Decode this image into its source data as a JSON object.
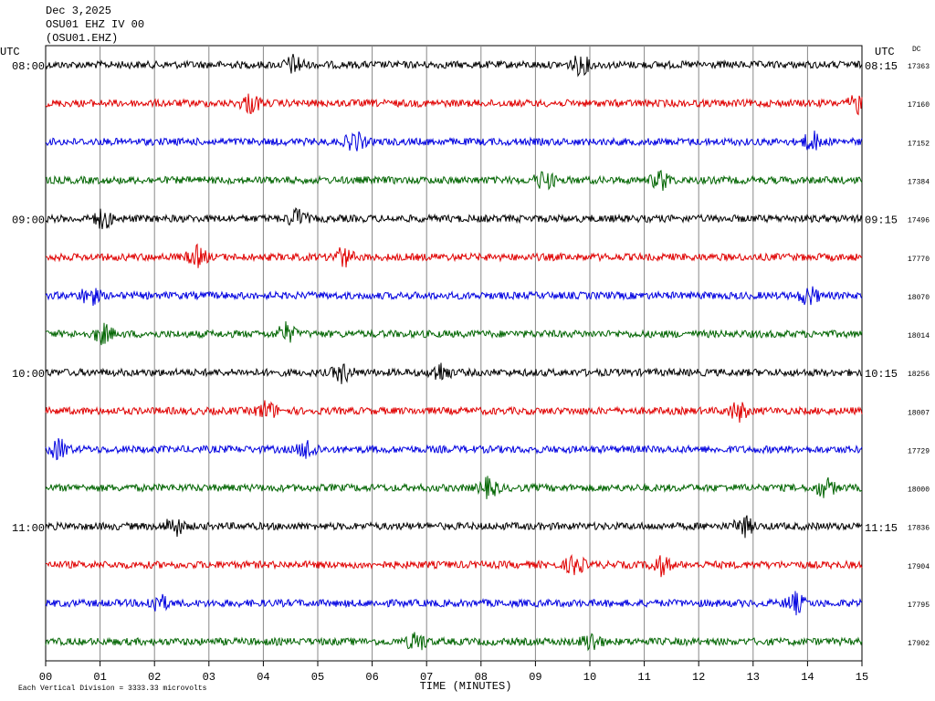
{
  "header": {
    "date": "Dec 3,2025",
    "station": "OSU01 EHZ IV 00",
    "channel": "(OSU01.EHZ)"
  },
  "left_axis": {
    "label": "UTC"
  },
  "right_axis": {
    "label": "UTC",
    "dc_label": "DC"
  },
  "rows": [
    {
      "left_time": "08:00",
      "right_time": "08:15",
      "dc": 17363,
      "color": "#000000"
    },
    {
      "dc": 17160,
      "color": "#e00000"
    },
    {
      "dc": 17152,
      "color": "#0000e0"
    },
    {
      "dc": 17384,
      "color": "#006400"
    },
    {
      "left_time": "09:00",
      "right_time": "09:15",
      "dc": 17496,
      "color": "#000000"
    },
    {
      "dc": 17770,
      "color": "#e00000"
    },
    {
      "dc": 18070,
      "color": "#0000e0"
    },
    {
      "dc": 18014,
      "color": "#006400"
    },
    {
      "left_time": "10:00",
      "right_time": "10:15",
      "dc": 18256,
      "color": "#000000"
    },
    {
      "dc": 18007,
      "color": "#e00000"
    },
    {
      "dc": 17729,
      "color": "#0000e0"
    },
    {
      "dc": 18000,
      "color": "#006400"
    },
    {
      "left_time": "11:00",
      "right_time": "11:15",
      "dc": 17836,
      "color": "#000000"
    },
    {
      "dc": 17904,
      "color": "#e00000"
    },
    {
      "dc": 17795,
      "color": "#0000e0"
    },
    {
      "dc": 17902,
      "color": "#006400"
    }
  ],
  "x_axis": {
    "label": "TIME (MINUTES)",
    "ticks": [
      "00",
      "01",
      "02",
      "03",
      "04",
      "05",
      "06",
      "07",
      "08",
      "09",
      "10",
      "11",
      "12",
      "13",
      "14",
      "15"
    ]
  },
  "footer": "Each Vertical Division = 3333.33 microvolts"
}
